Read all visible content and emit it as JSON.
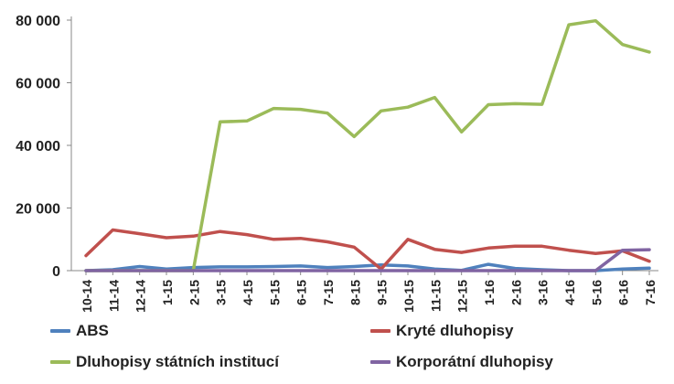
{
  "chart_data": {
    "type": "line",
    "title": "",
    "xlabel": "",
    "ylabel": "",
    "ylim": [
      0,
      80000
    ],
    "yticks": [
      0,
      20000,
      40000,
      60000,
      80000
    ],
    "ytick_labels": [
      "0",
      "20 000",
      "40 000",
      "60 000",
      "80 000"
    ],
    "grid": false,
    "legend_position": "bottom",
    "categories": [
      "10-14",
      "11-14",
      "12-14",
      "1-15",
      "2-15",
      "3-15",
      "4-15",
      "5-15",
      "6-15",
      "7-15",
      "8-15",
      "9-15",
      "10-15",
      "11-15",
      "12-15",
      "1-16",
      "2-16",
      "3-16",
      "4-16",
      "5-16",
      "6-16",
      "7-16"
    ],
    "series": [
      {
        "name": "ABS",
        "color": "#4f81bd",
        "values": [
          0,
          300,
          1300,
          500,
          1000,
          1200,
          1200,
          1300,
          1500,
          1000,
          1300,
          1800,
          1500,
          500,
          100,
          2000,
          700,
          300,
          0,
          0,
          500,
          800
        ]
      },
      {
        "name": "Kryté dluhopisy",
        "color": "#c0504d",
        "values": [
          4800,
          13000,
          11800,
          10500,
          11000,
          12500,
          11500,
          10000,
          10300,
          9200,
          7500,
          500,
          10000,
          6800,
          5800,
          7200,
          7800,
          7800,
          6500,
          5500,
          6300,
          3000
        ]
      },
      {
        "name": "Dluhopisy státních institucí",
        "color": "#9bbb59",
        "values": [
          0,
          0,
          0,
          0,
          0,
          47500,
          47800,
          51800,
          51500,
          50300,
          42800,
          51000,
          52200,
          55300,
          44300,
          53000,
          53300,
          53100,
          78500,
          79800,
          72200,
          69800
        ]
      },
      {
        "name": "Korporátní dluhopisy",
        "color": "#8064a2",
        "values": [
          0,
          0,
          0,
          0,
          0,
          0,
          0,
          0,
          0,
          0,
          0,
          0,
          0,
          0,
          0,
          0,
          0,
          0,
          0,
          0,
          6500,
          6700
        ]
      }
    ]
  }
}
